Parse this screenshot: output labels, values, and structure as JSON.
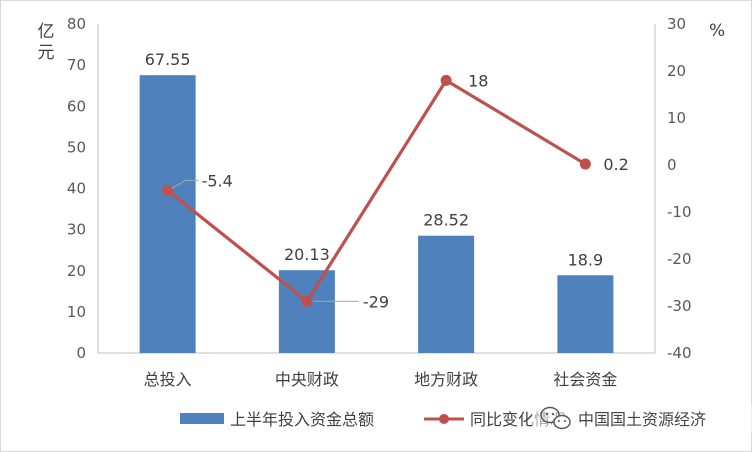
{
  "chart_data": {
    "type": "bar+line",
    "categories": [
      "总投入",
      "中央财政",
      "地方财政",
      "社会资金"
    ],
    "series": [
      {
        "name": "上半年投入资金总额",
        "type": "bar",
        "axis": "left",
        "values": [
          67.55,
          20.13,
          28.52,
          18.9
        ],
        "labels": [
          "67.55",
          "20.13",
          "28.52",
          "18.9"
        ],
        "color": "#4f81bd"
      },
      {
        "name": "同比变化情况",
        "type": "line",
        "axis": "right",
        "values": [
          -5.4,
          -29,
          18,
          0.2
        ],
        "labels": [
          "-5.4",
          "-29",
          "18",
          "0.2"
        ],
        "color": "#c0504d"
      }
    ],
    "y_left": {
      "unit_label": "亿元",
      "range": [
        0,
        80
      ],
      "ticks": [
        "0",
        "10",
        "20",
        "30",
        "40",
        "50",
        "60",
        "70",
        "80"
      ]
    },
    "y_right": {
      "unit_label": "%",
      "range": [
        -40,
        30
      ],
      "ticks": [
        "-40",
        "-30",
        "-20",
        "-10",
        "0",
        "10",
        "20",
        "30"
      ]
    },
    "grid": false,
    "legend_position": "bottom"
  },
  "watermark": {
    "text": "中国国土资源经济",
    "icon": "wechat-icon"
  }
}
